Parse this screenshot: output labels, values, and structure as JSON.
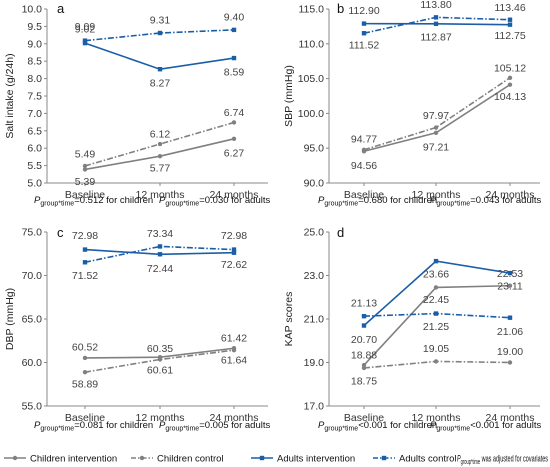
{
  "colors": {
    "children": "#808080",
    "adults": "#1a5ea8",
    "axis": "#888888"
  },
  "legend": [
    {
      "label": "Children intervention",
      "color": "#808080",
      "dash": "solid"
    },
    {
      "label": "Children control",
      "color": "#808080",
      "dash": "dashdot"
    },
    {
      "label": "Adults intervention",
      "color": "#1a5ea8",
      "dash": "solid"
    },
    {
      "label": "Adults control",
      "color": "#1a5ea8",
      "dash": "dashdot"
    }
  ],
  "legend_note": {
    "prefix": "P",
    "sub": "group*time",
    "rest": " was adjusted for covariates"
  },
  "chart_data": [
    {
      "type": "line",
      "panel": "a",
      "title": "",
      "xlabel": "",
      "ylabel": "Salt intake (g/24h)",
      "categories": [
        "Baseline",
        "12 months",
        "24 months"
      ],
      "ylim": [
        5.0,
        10.0
      ],
      "yticks": [
        "5.0",
        "5.5",
        "6.0",
        "6.5",
        "7.0",
        "7.5",
        "8.0",
        "8.5",
        "9.0",
        "9.5",
        "10.0"
      ],
      "series": [
        {
          "name": "Children intervention",
          "values": [
            5.39,
            5.77,
            6.27
          ],
          "labels": [
            "5.39",
            "5.77",
            "6.27"
          ]
        },
        {
          "name": "Children control",
          "values": [
            5.49,
            6.12,
            6.74
          ],
          "labels": [
            "5.49",
            "6.12",
            "6.74"
          ]
        },
        {
          "name": "Adults intervention",
          "values": [
            9.02,
            8.27,
            8.59
          ],
          "labels": [
            "9.02",
            "8.27",
            "8.59"
          ]
        },
        {
          "name": "Adults control",
          "values": [
            9.09,
            9.31,
            9.4
          ],
          "labels": [
            "9.09",
            "9.31",
            "9.40"
          ]
        }
      ],
      "p_notes": [
        {
          "prefix": "P",
          "sub": "group*time",
          "rest": "=0.512 for children"
        },
        {
          "prefix": "P",
          "sub": "group*time",
          "rest": "=0.030 for adults"
        }
      ]
    },
    {
      "type": "line",
      "panel": "b",
      "title": "",
      "xlabel": "",
      "ylabel": "SBP (mmHg)",
      "categories": [
        "Baseline",
        "12 months",
        "24 months"
      ],
      "ylim": [
        90.0,
        115.0
      ],
      "yticks": [
        "90.0",
        "95.0",
        "100.0",
        "105.0",
        "110.0",
        "115.0"
      ],
      "series": [
        {
          "name": "Children intervention",
          "values": [
            94.56,
            97.21,
            104.13
          ],
          "labels": [
            "94.56",
            "97.21",
            "104.13"
          ]
        },
        {
          "name": "Children control",
          "values": [
            94.77,
            97.97,
            105.12
          ],
          "labels": [
            "94.77",
            "97.97",
            "105.12"
          ]
        },
        {
          "name": "Adults intervention",
          "values": [
            112.9,
            112.87,
            112.75
          ],
          "labels": [
            "112.90",
            "112.87",
            "112.75"
          ]
        },
        {
          "name": "Adults control",
          "values": [
            111.52,
            113.8,
            113.46
          ],
          "labels": [
            "111.52",
            "113.80",
            "113.46"
          ]
        }
      ],
      "p_notes": [
        {
          "prefix": "P",
          "sub": "group*time",
          "rest": "=0.680 for children"
        },
        {
          "prefix": "P",
          "sub": "group*time",
          "rest": "=0.043 for adults"
        }
      ]
    },
    {
      "type": "line",
      "panel": "c",
      "title": "",
      "xlabel": "",
      "ylabel": "DBP (mmHg)",
      "categories": [
        "Baseline",
        "12 months",
        "24 months"
      ],
      "ylim": [
        55.0,
        75.0
      ],
      "yticks": [
        "55.0",
        "60.0",
        "65.0",
        "70.0",
        "75.0"
      ],
      "series": [
        {
          "name": "Children intervention",
          "values": [
            60.52,
            60.61,
            61.64
          ],
          "labels": [
            "60.52",
            "60.61",
            "61.64"
          ]
        },
        {
          "name": "Children control",
          "values": [
            58.89,
            60.35,
            61.42
          ],
          "labels": [
            "58.89",
            "60.35",
            "61.42"
          ]
        },
        {
          "name": "Adults intervention",
          "values": [
            72.98,
            72.44,
            72.62
          ],
          "labels": [
            "72.98",
            "72.44",
            "72.62"
          ]
        },
        {
          "name": "Adults control",
          "values": [
            71.52,
            73.34,
            72.98
          ],
          "labels": [
            "71.52",
            "73.34",
            "72.98"
          ]
        }
      ],
      "p_notes": [
        {
          "prefix": "P",
          "sub": "group*time",
          "rest": "=0.081 for children"
        },
        {
          "prefix": "P",
          "sub": "group*time",
          "rest": "=0.005 for adults"
        }
      ]
    },
    {
      "type": "line",
      "panel": "d",
      "title": "",
      "xlabel": "",
      "ylabel": "KAP scores",
      "categories": [
        "Baseline",
        "12 months",
        "24 months"
      ],
      "ylim": [
        17.0,
        25.0
      ],
      "yticks": [
        "17.0",
        "19.0",
        "21.0",
        "23.0",
        "25.0"
      ],
      "series": [
        {
          "name": "Children intervention",
          "values": [
            18.88,
            22.45,
            22.53
          ],
          "labels": [
            "18.88",
            "22.45",
            "22.53"
          ]
        },
        {
          "name": "Children control",
          "values": [
            18.75,
            19.05,
            19.0
          ],
          "labels": [
            "18.75",
            "19.05",
            "19.00"
          ]
        },
        {
          "name": "Adults intervention",
          "values": [
            20.7,
            23.66,
            23.11
          ],
          "labels": [
            "20.70",
            "23.66",
            "23.11"
          ]
        },
        {
          "name": "Adults control",
          "values": [
            21.13,
            21.25,
            21.06
          ],
          "labels": [
            "21.13",
            "21.25",
            "21.06"
          ]
        }
      ],
      "p_notes": [
        {
          "prefix": "P",
          "sub": "group*time",
          "rest": "<0.001 for children"
        },
        {
          "prefix": "P",
          "sub": "group*time",
          "rest": "<0.001 for adults"
        }
      ]
    }
  ]
}
